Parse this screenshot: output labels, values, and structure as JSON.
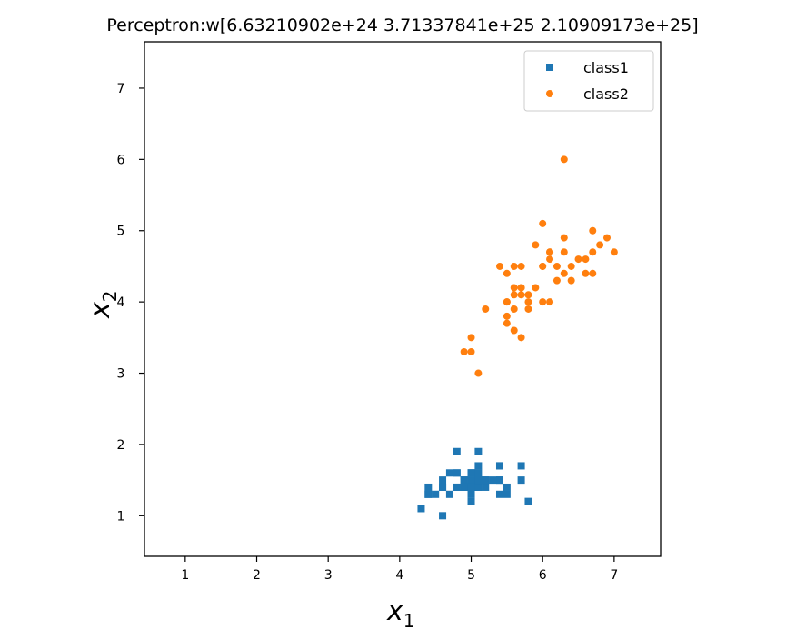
{
  "chart_data": {
    "type": "scatter",
    "title": "Perceptron:w[6.63210902e+24 3.71337841e+25 2.10909173e+25]",
    "xlabel_base": "x",
    "xlabel_sub": "1",
    "ylabel_base": "x",
    "ylabel_sub": "2",
    "xlim": [
      0.43,
      7.65
    ],
    "ylim": [
      0.43,
      7.65
    ],
    "xticks": [
      1,
      2,
      3,
      4,
      5,
      6,
      7
    ],
    "yticks": [
      1,
      2,
      3,
      4,
      5,
      6,
      7
    ],
    "grid": false,
    "legend_position": "top-right",
    "series": [
      {
        "name": "class1",
        "marker": "square",
        "color": "#1f77b4",
        "points": [
          [
            5.1,
            1.4
          ],
          [
            4.9,
            1.4
          ],
          [
            4.7,
            1.3
          ],
          [
            4.6,
            1.5
          ],
          [
            5.0,
            1.4
          ],
          [
            5.4,
            1.7
          ],
          [
            4.6,
            1.4
          ],
          [
            5.0,
            1.5
          ],
          [
            4.4,
            1.4
          ],
          [
            4.9,
            1.5
          ],
          [
            5.4,
            1.5
          ],
          [
            4.8,
            1.6
          ],
          [
            4.8,
            1.4
          ],
          [
            4.3,
            1.1
          ],
          [
            5.8,
            1.2
          ],
          [
            5.7,
            1.5
          ],
          [
            5.4,
            1.3
          ],
          [
            5.1,
            1.4
          ],
          [
            5.7,
            1.7
          ],
          [
            5.1,
            1.5
          ],
          [
            5.4,
            1.7
          ],
          [
            5.1,
            1.5
          ],
          [
            4.6,
            1.0
          ],
          [
            5.1,
            1.7
          ],
          [
            4.8,
            1.9
          ],
          [
            5.0,
            1.6
          ],
          [
            5.0,
            1.6
          ],
          [
            5.2,
            1.5
          ],
          [
            5.2,
            1.4
          ],
          [
            4.7,
            1.6
          ],
          [
            4.8,
            1.6
          ],
          [
            5.4,
            1.5
          ],
          [
            5.2,
            1.5
          ],
          [
            5.5,
            1.4
          ],
          [
            4.9,
            1.5
          ],
          [
            5.0,
            1.2
          ],
          [
            5.5,
            1.3
          ],
          [
            4.9,
            1.4
          ],
          [
            4.4,
            1.3
          ],
          [
            5.1,
            1.5
          ],
          [
            5.0,
            1.3
          ],
          [
            4.5,
            1.3
          ],
          [
            4.4,
            1.3
          ],
          [
            5.0,
            1.6
          ],
          [
            5.1,
            1.9
          ],
          [
            4.8,
            1.4
          ],
          [
            5.1,
            1.6
          ],
          [
            4.6,
            1.4
          ],
          [
            5.3,
            1.5
          ],
          [
            5.0,
            1.4
          ]
        ]
      },
      {
        "name": "class2",
        "marker": "circle",
        "color": "#ff7f0e",
        "points": [
          [
            7.0,
            4.7
          ],
          [
            6.4,
            4.5
          ],
          [
            6.9,
            4.9
          ],
          [
            5.5,
            4.0
          ],
          [
            6.5,
            4.6
          ],
          [
            5.7,
            4.5
          ],
          [
            6.3,
            4.7
          ],
          [
            4.9,
            3.3
          ],
          [
            6.6,
            4.6
          ],
          [
            5.2,
            3.9
          ],
          [
            5.0,
            3.5
          ],
          [
            5.9,
            4.2
          ],
          [
            6.0,
            4.0
          ],
          [
            6.1,
            4.7
          ],
          [
            5.6,
            3.6
          ],
          [
            6.7,
            4.4
          ],
          [
            5.6,
            4.5
          ],
          [
            5.8,
            4.1
          ],
          [
            6.2,
            4.5
          ],
          [
            5.6,
            3.9
          ],
          [
            5.9,
            4.8
          ],
          [
            6.1,
            4.0
          ],
          [
            6.3,
            4.9
          ],
          [
            6.1,
            4.7
          ],
          [
            6.4,
            4.3
          ],
          [
            6.6,
            4.4
          ],
          [
            6.8,
            4.8
          ],
          [
            6.7,
            5.0
          ],
          [
            6.0,
            4.5
          ],
          [
            5.7,
            3.5
          ],
          [
            5.5,
            3.8
          ],
          [
            5.5,
            3.7
          ],
          [
            5.8,
            3.9
          ],
          [
            6.0,
            5.1
          ],
          [
            5.4,
            4.5
          ],
          [
            6.0,
            4.5
          ],
          [
            6.7,
            4.7
          ],
          [
            6.3,
            4.4
          ],
          [
            5.6,
            4.1
          ],
          [
            5.5,
            4.0
          ],
          [
            5.5,
            4.4
          ],
          [
            6.1,
            4.6
          ],
          [
            5.8,
            4.0
          ],
          [
            5.0,
            3.3
          ],
          [
            5.6,
            4.2
          ],
          [
            5.7,
            4.2
          ],
          [
            5.7,
            4.2
          ],
          [
            6.2,
            4.3
          ],
          [
            5.1,
            3.0
          ],
          [
            5.7,
            4.1
          ],
          [
            6.3,
            6.0
          ]
        ]
      }
    ]
  }
}
